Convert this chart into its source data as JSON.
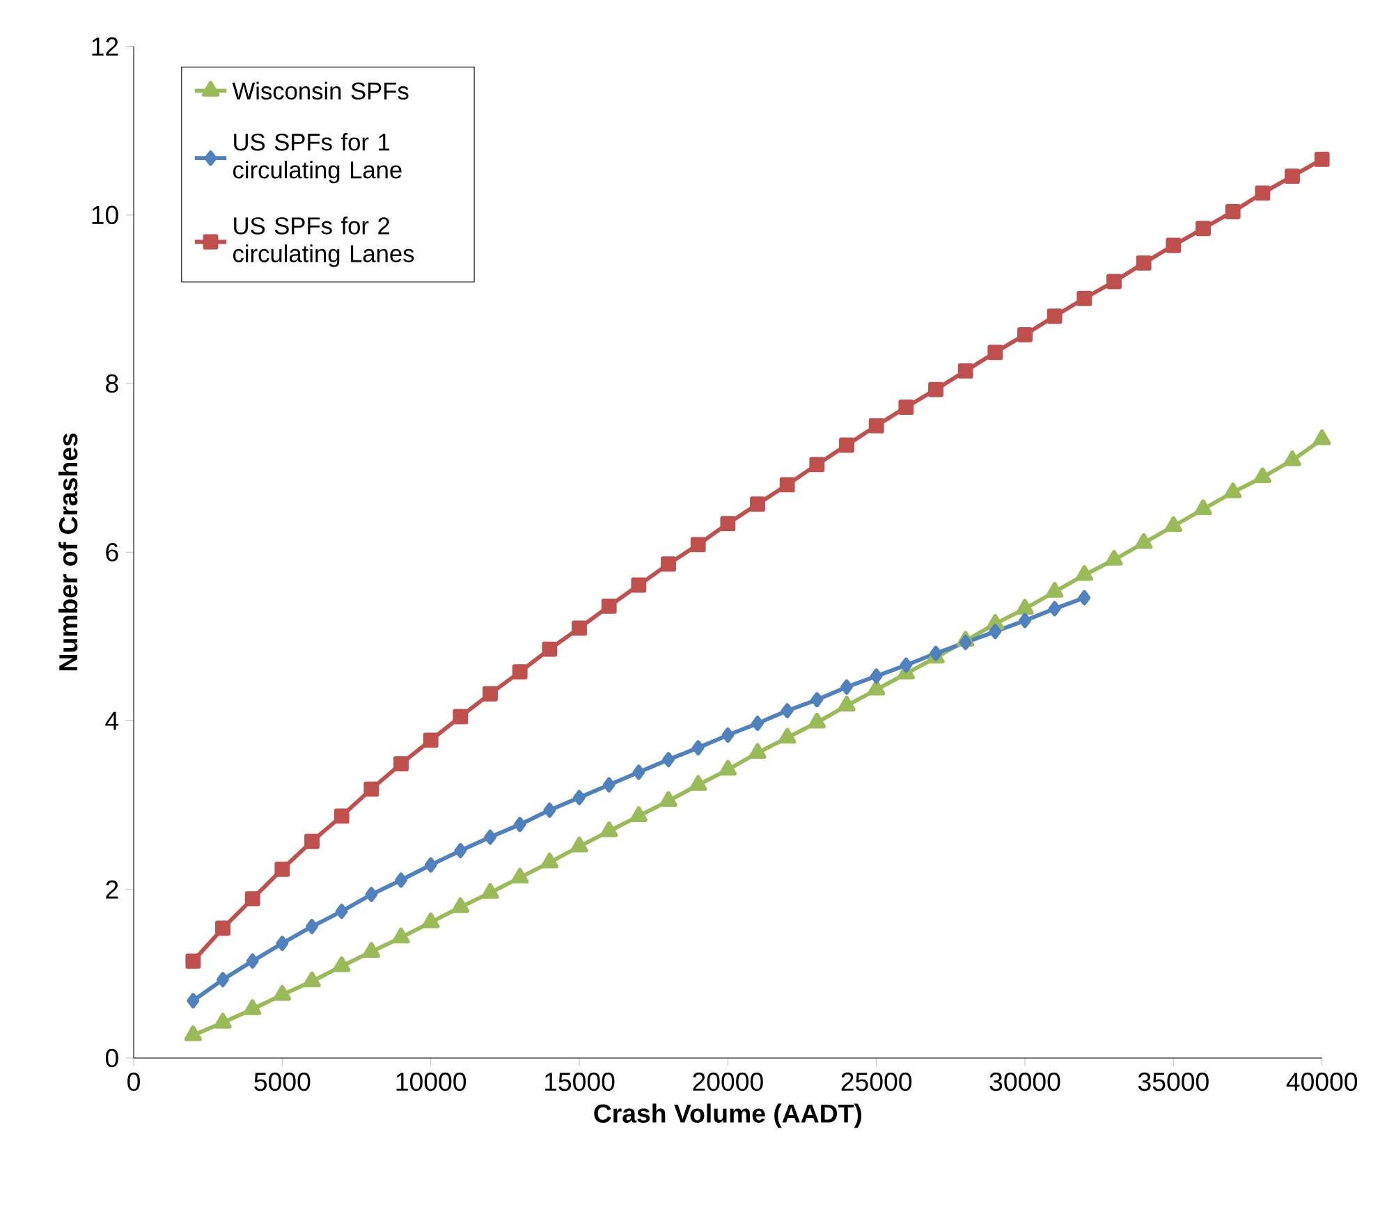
{
  "chart_data": {
    "type": "line",
    "xlabel": "Crash Volume (AADT)",
    "ylabel": "Number of Crashes",
    "xlim": [
      0,
      40000
    ],
    "xticks": [
      0,
      5000,
      10000,
      15000,
      20000,
      25000,
      30000,
      35000,
      40000
    ],
    "ylim": [
      0,
      12
    ],
    "yticks": [
      0,
      2,
      4,
      6,
      8,
      10,
      12
    ],
    "grid": false,
    "legend": "top left",
    "line_style": "solid",
    "series": [
      {
        "name": "Wisconsin SPFs",
        "color": "#9bbb59",
        "marker": "triangle",
        "x": [
          2000,
          3000,
          4000,
          5000,
          6000,
          7000,
          8000,
          9000,
          10000,
          11000,
          12000,
          13000,
          14000,
          15000,
          16000,
          17000,
          18000,
          19000,
          20000,
          21000,
          22000,
          23000,
          24000,
          25000,
          26000,
          27000,
          28000,
          29000,
          30000,
          31000,
          32000,
          33000,
          34000,
          35000,
          36000,
          37000,
          38000,
          39000,
          40000
        ],
        "values": [
          0.27,
          0.42,
          0.58,
          0.75,
          0.91,
          1.09,
          1.26,
          1.43,
          1.61,
          1.79,
          1.96,
          2.14,
          2.32,
          2.51,
          2.69,
          2.87,
          3.05,
          3.24,
          3.42,
          3.62,
          3.8,
          3.98,
          4.18,
          4.37,
          4.56,
          4.75,
          4.95,
          5.15,
          5.33,
          5.53,
          5.73,
          5.91,
          6.11,
          6.31,
          6.51,
          6.71,
          6.89,
          7.09,
          7.34
        ]
      },
      {
        "name": "US SPFs for 1 circulating Lane",
        "color": "#4f81bd",
        "marker": "diamond",
        "x": [
          2000,
          3000,
          4000,
          5000,
          6000,
          7000,
          8000,
          9000,
          10000,
          11000,
          12000,
          13000,
          14000,
          15000,
          16000,
          17000,
          18000,
          19000,
          20000,
          21000,
          22000,
          23000,
          24000,
          25000,
          26000,
          27000,
          28000,
          29000,
          30000,
          31000,
          32000
        ],
        "values": [
          0.68,
          0.93,
          1.15,
          1.36,
          1.56,
          1.74,
          1.94,
          2.11,
          2.29,
          2.46,
          2.62,
          2.77,
          2.94,
          3.09,
          3.24,
          3.39,
          3.54,
          3.68,
          3.83,
          3.97,
          4.12,
          4.25,
          4.4,
          4.53,
          4.66,
          4.8,
          4.93,
          5.06,
          5.19,
          5.33,
          5.46
        ]
      },
      {
        "name": "US SPFs for 2 circulating Lanes",
        "color": "#c0504d",
        "marker": "square",
        "x": [
          2000,
          3000,
          4000,
          5000,
          6000,
          7000,
          8000,
          9000,
          10000,
          11000,
          12000,
          13000,
          14000,
          15000,
          16000,
          17000,
          18000,
          19000,
          20000,
          21000,
          22000,
          23000,
          24000,
          25000,
          26000,
          27000,
          28000,
          29000,
          30000,
          31000,
          32000,
          33000,
          34000,
          35000,
          36000,
          37000,
          38000,
          39000,
          40000
        ],
        "values": [
          1.15,
          1.54,
          1.89,
          2.24,
          2.57,
          2.87,
          3.19,
          3.49,
          3.77,
          4.05,
          4.32,
          4.58,
          4.85,
          5.1,
          5.36,
          5.61,
          5.86,
          6.09,
          6.34,
          6.57,
          6.8,
          7.04,
          7.27,
          7.5,
          7.72,
          7.93,
          8.15,
          8.37,
          8.58,
          8.8,
          9.01,
          9.21,
          9.43,
          9.64,
          9.84,
          10.04,
          10.26,
          10.46,
          10.66
        ]
      }
    ]
  }
}
